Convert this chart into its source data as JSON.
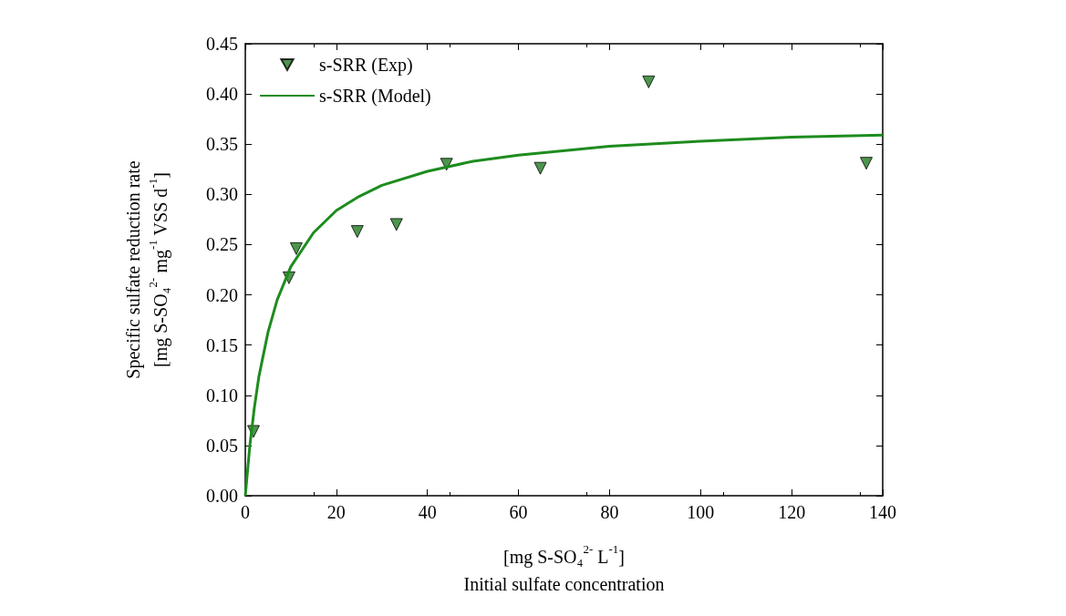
{
  "chart_data": {
    "type": "scatter",
    "xlabel": "[mg S-SO₄$^{2-}$ L$^{-1}$]\nInitial sulfate concentration",
    "ylabel": "Specific sulfate reduction rate\n[mg S-SO₄$^{2-}$ mg$^{-1}$ VSS d$^{-1}$]",
    "series": [
      {
        "name": "s-SRR (Exp)",
        "color": "#1f7a1f",
        "marker": "triangle",
        "x": [
          1.8,
          9.6,
          11.2,
          24.6,
          33.2,
          44.2,
          64.8,
          88.6,
          136.4
        ],
        "values": [
          0.064,
          0.217,
          0.246,
          0.263,
          0.27,
          0.33,
          0.326,
          0.412,
          0.331
        ]
      },
      {
        "name": "s-SRR (Model)",
        "type": "line",
        "color": "#1e8c1e",
        "marker": "none",
        "line_style": "solid",
        "x": [
          0,
          1,
          2,
          3,
          5,
          7,
          10,
          15,
          20,
          25,
          30,
          40,
          50,
          60,
          80,
          100,
          120,
          140
        ],
        "values": [
          0,
          0.05,
          0.088,
          0.119,
          0.163,
          0.195,
          0.228,
          0.262,
          0.284,
          0.298,
          0.309,
          0.323,
          0.333,
          0.339,
          0.348,
          0.353,
          0.357,
          0.359
        ]
      }
    ],
    "xlim": [
      0,
      140
    ],
    "xticks": [
      0,
      20,
      40,
      60,
      80,
      100,
      120,
      140
    ],
    "ylim": [
      0,
      0.45
    ],
    "yticks": [
      {
        "value": 0,
        "label": "0.00"
      },
      {
        "value": 0.05,
        "label": "0.05"
      },
      {
        "value": 0.1,
        "label": "0.10"
      },
      {
        "value": 0.15,
        "label": "0.15"
      },
      {
        "value": 0.2,
        "label": "0.20"
      },
      {
        "value": 0.25,
        "label": "0.25"
      },
      {
        "value": 0.3,
        "label": "0.30"
      },
      {
        "value": 0.35,
        "label": "0.35"
      },
      {
        "value": 0.4,
        "label": "0.40"
      },
      {
        "value": 0.45,
        "label": "0.45"
      }
    ],
    "grid": false,
    "legend": "top left"
  }
}
